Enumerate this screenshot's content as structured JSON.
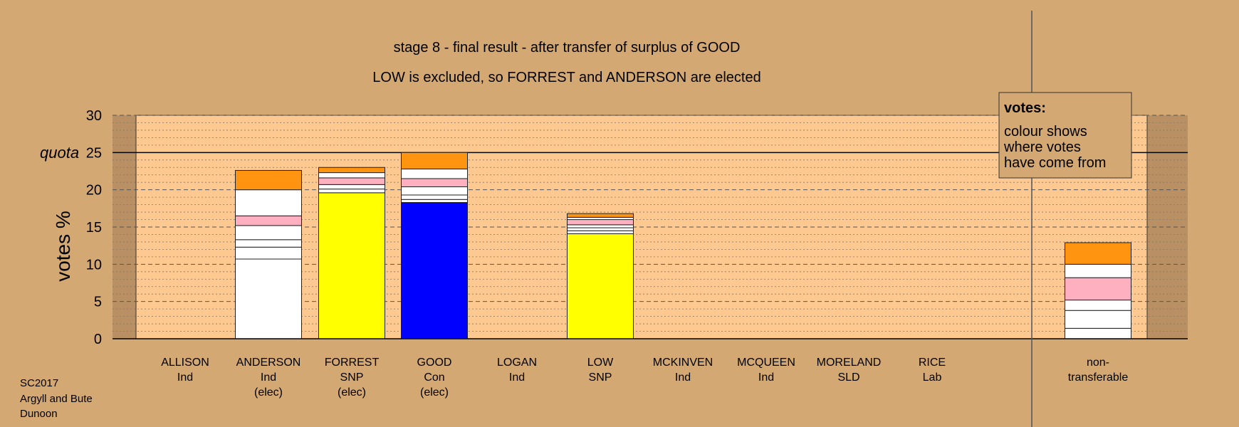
{
  "title": "stage 8 - final result - after transfer of surplus of GOOD",
  "subtitle": "LOW is excluded, so FORREST and ANDERSON are elected",
  "ylabel": "votes %",
  "quota_label": "quota",
  "footer": [
    "SC2017",
    "Argyll and Bute",
    "Dunoon"
  ],
  "legend": {
    "title": "votes:",
    "lines": [
      "colour shows",
      "where votes",
      "have come from"
    ]
  },
  "colors": {
    "background": "#d4a873",
    "plot_area": "#fdc990",
    "White": "#ffffff",
    "Yellow": "#ffff00",
    "Blue": "#0000ff",
    "Pink": "#ffb0c0",
    "Orange": "#ff9410"
  },
  "chart_data": {
    "type": "bar",
    "stacked": true,
    "ylim": [
      0,
      30
    ],
    "yticks": [
      0,
      5,
      10,
      15,
      20,
      25,
      30
    ],
    "quota": 25,
    "grid": true,
    "categories": [
      {
        "lines": [
          "ALLISON",
          "Ind"
        ],
        "segments": []
      },
      {
        "lines": [
          "ANDERSON",
          "Ind",
          "(elec)"
        ],
        "segments": [
          {
            "color": "White",
            "value": 10.7
          },
          {
            "color": "White",
            "value": 1.6
          },
          {
            "color": "White",
            "value": 1.0
          },
          {
            "color": "White",
            "value": 1.9
          },
          {
            "color": "Pink",
            "value": 1.3
          },
          {
            "color": "White",
            "value": 3.5
          },
          {
            "color": "Orange",
            "value": 2.6
          }
        ]
      },
      {
        "lines": [
          "FORREST",
          "SNP",
          "(elec)"
        ],
        "segments": [
          {
            "color": "Yellow",
            "value": 19.6
          },
          {
            "color": "White",
            "value": 0.5
          },
          {
            "color": "White",
            "value": 0.6
          },
          {
            "color": "Pink",
            "value": 0.9
          },
          {
            "color": "White",
            "value": 0.7
          },
          {
            "color": "Orange",
            "value": 0.7
          }
        ]
      },
      {
        "lines": [
          "GOOD",
          "Con",
          "(elec)"
        ],
        "segments": [
          {
            "color": "Blue",
            "value": 18.3
          },
          {
            "color": "White",
            "value": 0.4
          },
          {
            "color": "White",
            "value": 0.6
          },
          {
            "color": "White",
            "value": 1.1
          },
          {
            "color": "Pink",
            "value": 1.1
          },
          {
            "color": "White",
            "value": 1.3
          },
          {
            "color": "Orange",
            "value": 2.2
          }
        ]
      },
      {
        "lines": [
          "LOGAN",
          "Ind"
        ],
        "segments": []
      },
      {
        "lines": [
          "LOW",
          "SNP"
        ],
        "segments": [
          {
            "color": "Yellow",
            "value": 14.1
          },
          {
            "color": "White",
            "value": 0.4
          },
          {
            "color": "White",
            "value": 0.4
          },
          {
            "color": "White",
            "value": 0.4
          },
          {
            "color": "Pink",
            "value": 0.7
          },
          {
            "color": "White",
            "value": 0.3
          },
          {
            "color": "Orange",
            "value": 0.5
          }
        ]
      },
      {
        "lines": [
          "MCKINVEN",
          "Ind"
        ],
        "segments": []
      },
      {
        "lines": [
          "MCQUEEN",
          "Ind"
        ],
        "segments": []
      },
      {
        "lines": [
          "MORELAND",
          "SLD"
        ],
        "segments": []
      },
      {
        "lines": [
          "RICE",
          "Lab"
        ],
        "segments": []
      },
      {
        "lines": [
          "non-",
          "transferable"
        ],
        "segments": [
          {
            "color": "White",
            "value": 1.4
          },
          {
            "color": "White",
            "value": 2.4
          },
          {
            "color": "White",
            "value": 1.4
          },
          {
            "color": "Pink",
            "value": 3.0
          },
          {
            "color": "White",
            "value": 1.8
          },
          {
            "color": "Orange",
            "value": 2.9
          }
        ]
      }
    ]
  }
}
